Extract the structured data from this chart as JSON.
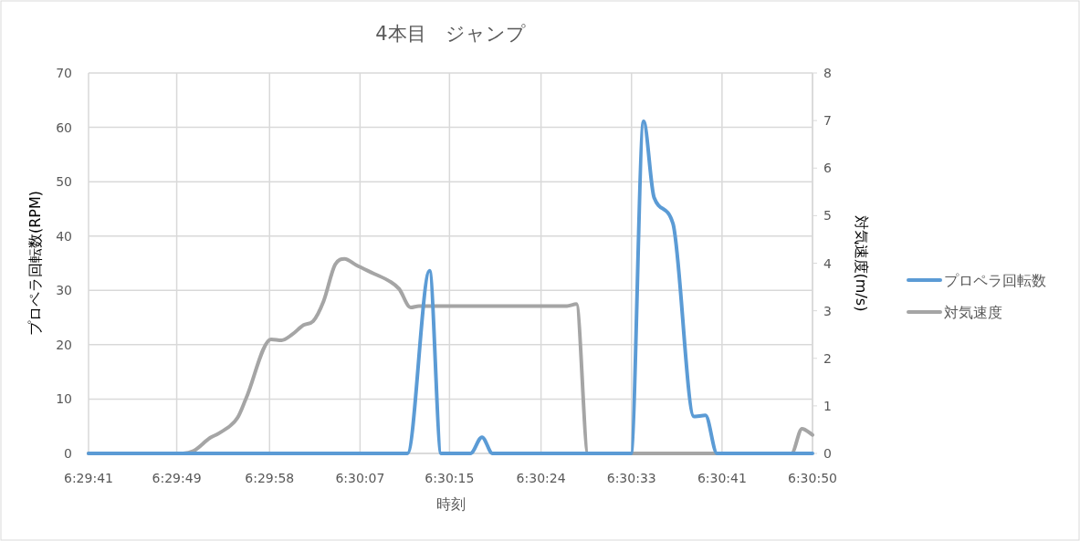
{
  "chart_data": {
    "type": "line",
    "title": "4本目　ジャンプ",
    "xlabel": "時刻",
    "ylabel": "プロペラ回転数(RPM)",
    "y2label": "対気速度(m/s)",
    "xlim": [
      6.494722,
      6.513889
    ],
    "xticks": [
      {
        "value": 6.494722,
        "label": "6:29:41"
      },
      {
        "value": 6.497056,
        "label": "6:29:49"
      },
      {
        "value": 6.499514,
        "label": "6:29:58"
      },
      {
        "value": 6.50191,
        "label": "6:30:07"
      },
      {
        "value": 6.504278,
        "label": "6:30:15"
      },
      {
        "value": 6.506701,
        "label": "6:30:24"
      },
      {
        "value": 6.509097,
        "label": "6:30:33"
      },
      {
        "value": 6.511493,
        "label": "6:30:41"
      },
      {
        "value": 6.513889,
        "label": "6:30:50"
      }
    ],
    "ylim": [
      0,
      70
    ],
    "yticks": [
      0,
      10,
      20,
      30,
      40,
      50,
      60,
      70
    ],
    "y2lim": [
      0,
      8
    ],
    "y2ticks": [
      0,
      1,
      2,
      3,
      4,
      5,
      6,
      7,
      8
    ],
    "grid": true,
    "legend": "right",
    "marker": "none",
    "line_style": "solid",
    "series": [
      {
        "name": "プロペラ回転数",
        "color": "#5b9bd5",
        "x": [
          6.494722,
          6.503166,
          6.50375,
          6.504055,
          6.504833,
          6.505139,
          6.505416,
          6.509083,
          6.509416,
          6.509694,
          6.510194,
          6.51075,
          6.511055,
          6.511361,
          6.513889
        ],
        "values": [
          0,
          0,
          33.6,
          0,
          0,
          3.0,
          0,
          0,
          61.1,
          47.1,
          42.3,
          6.8,
          7.0,
          0,
          0
        ]
      },
      {
        "name": "対気速度",
        "color": "#a5a5a5",
        "axis": "y2",
        "x": [
          6.494722,
          6.497222,
          6.4975,
          6.497944,
          6.498166,
          6.498666,
          6.498889,
          6.499555,
          6.499833,
          6.500111,
          6.500416,
          6.500666,
          6.500944,
          6.50125,
          6.5015,
          6.501805,
          6.502278,
          6.502694,
          6.502944,
          6.50325,
          6.503472,
          6.507389,
          6.507639,
          6.507944,
          6.513333,
          6.513611,
          6.513889
        ],
        "values": [
          0,
          0,
          0.05,
          0.33,
          0.42,
          0.75,
          1.15,
          2.4,
          2.38,
          2.5,
          2.7,
          2.78,
          3.2,
          3.97,
          4.09,
          3.96,
          3.78,
          3.62,
          3.46,
          3.07,
          3.1,
          3.1,
          3.14,
          0,
          0,
          0.52,
          0.39
        ]
      }
    ]
  }
}
